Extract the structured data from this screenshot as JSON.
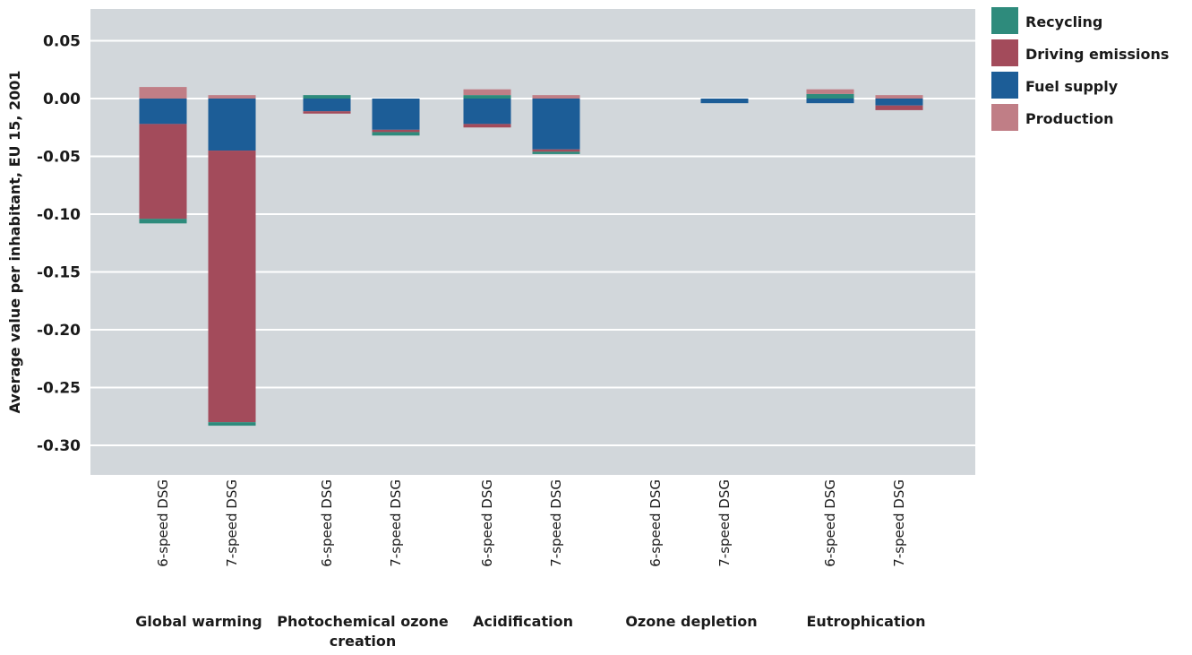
{
  "chart_data": {
    "type": "bar",
    "stacked": true,
    "ylabel": "Average value per inhabitant, EU 15, 2001",
    "ylim": [
      -0.32,
      0.075
    ],
    "yticks": [
      "0.05",
      "0.00",
      "-0.05",
      "-0.10",
      "-0.15",
      "-0.20",
      "-0.25",
      "-0.30"
    ],
    "grid": true,
    "legend_position": "top-right",
    "groups": [
      "Global warming",
      "Photochemical ozone creation",
      "Acidification",
      "Ozone depletion",
      "Eutrophication"
    ],
    "categories": [
      "6-speed DSG",
      "7-speed DSG"
    ],
    "series": [
      {
        "name": "Recycling",
        "color": "#2e8b7c"
      },
      {
        "name": "Driving emissions",
        "color": "#a34b5b"
      },
      {
        "name": "Fuel supply",
        "color": "#1c5d97"
      },
      {
        "name": "Production",
        "color": "#c07e86"
      }
    ],
    "bars": [
      {
        "group": "Global warming",
        "category": "6-speed DSG",
        "values": {
          "Production": 0.01,
          "Fuel supply": -0.022,
          "Driving emissions": -0.082,
          "Recycling": -0.004
        }
      },
      {
        "group": "Global warming",
        "category": "7-speed DSG",
        "values": {
          "Production": 0.003,
          "Fuel supply": -0.045,
          "Driving emissions": -0.235,
          "Recycling": -0.003
        }
      },
      {
        "group": "Photochemical ozone creation",
        "category": "6-speed DSG",
        "values": {
          "Recycling": 0.003,
          "Fuel supply": -0.011,
          "Driving emissions": -0.002
        }
      },
      {
        "group": "Photochemical ozone creation",
        "category": "7-speed DSG",
        "values": {
          "Fuel supply": -0.027,
          "Driving emissions": -0.002,
          "Recycling": -0.003
        }
      },
      {
        "group": "Acidification",
        "category": "6-speed DSG",
        "values": {
          "Production": 0.005,
          "Recycling": 0.003,
          "Fuel supply": -0.022,
          "Driving emissions": -0.003
        }
      },
      {
        "group": "Acidification",
        "category": "7-speed DSG",
        "values": {
          "Production": 0.003,
          "Fuel supply": -0.044,
          "Driving emissions": -0.002,
          "Recycling": -0.002
        }
      },
      {
        "group": "Ozone depletion",
        "category": "6-speed DSG",
        "values": {}
      },
      {
        "group": "Ozone depletion",
        "category": "7-speed DSG",
        "values": {
          "Fuel supply": -0.004
        }
      },
      {
        "group": "Eutrophication",
        "category": "6-speed DSG",
        "values": {
          "Production": 0.004,
          "Recycling": 0.004,
          "Fuel supply": -0.004
        }
      },
      {
        "group": "Eutrophication",
        "category": "7-speed DSG",
        "values": {
          "Production": 0.003,
          "Fuel supply": -0.006,
          "Driving emissions": -0.004
        }
      }
    ]
  }
}
